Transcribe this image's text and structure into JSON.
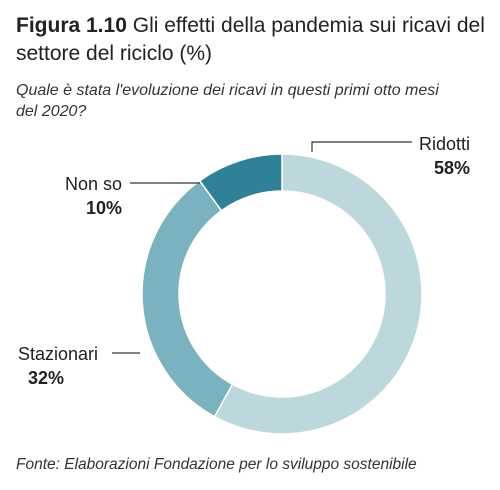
{
  "figure": {
    "number": "Figura 1.10",
    "title": "Gli effetti della pandemia sui ricavi del settore del riciclo (%)",
    "subtitle": "Quale è stata l'evoluzione dei ricavi in questi primi otto mesi del 2020?",
    "source": "Fonte: Elaborazioni Fondazione per lo sviluppo sostenibile"
  },
  "chart_data": {
    "type": "pie",
    "variant": "donut",
    "categories": [
      "Ridotti",
      "Stazionari",
      "Non so"
    ],
    "values": [
      58,
      32,
      10
    ],
    "value_labels": [
      "58%",
      "32%",
      "10%"
    ],
    "colors": [
      "#bdd8dd",
      "#7ab2c0",
      "#2e8197"
    ],
    "start_angle_deg": 0,
    "direction": "clockwise",
    "legend": "none"
  }
}
